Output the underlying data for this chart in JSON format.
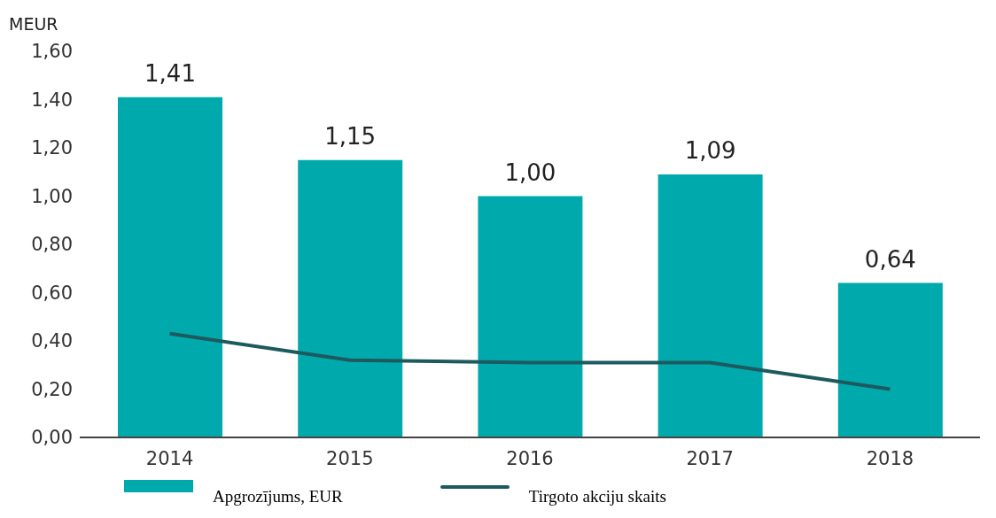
{
  "chart_data": {
    "type": "bar",
    "ylabel": "MEUR",
    "categories": [
      "2014",
      "2015",
      "2016",
      "2017",
      "2018"
    ],
    "series": [
      {
        "name": "Apgrozījums, EUR",
        "color": "#00aaac",
        "values": [
          1.41,
          1.15,
          1.0,
          1.09,
          0.64
        ],
        "value_labels": [
          "1,41",
          "1,15",
          "1,00",
          "1,09",
          "0,64"
        ]
      },
      {
        "name": "Tirgoto akciju skaits",
        "type": "line",
        "color": "#1d5a5f",
        "values": [
          0.43,
          0.32,
          0.31,
          0.31,
          0.2
        ]
      }
    ],
    "ylim": [
      0,
      1.6
    ],
    "yticks": [
      {
        "value": 0,
        "label": "0,00"
      },
      {
        "value": 0.2,
        "label": "0,20"
      },
      {
        "value": 0.4,
        "label": "0,40"
      },
      {
        "value": 0.6,
        "label": "0,60"
      },
      {
        "value": 0.8,
        "label": "0,80"
      },
      {
        "value": 1.0,
        "label": "1,00"
      },
      {
        "value": 1.2,
        "label": "1,20"
      },
      {
        "value": 1.4,
        "label": "1,40"
      },
      {
        "value": 1.6,
        "label": "1,60"
      }
    ],
    "grid": false,
    "legend": "bottom",
    "marker": "none"
  }
}
